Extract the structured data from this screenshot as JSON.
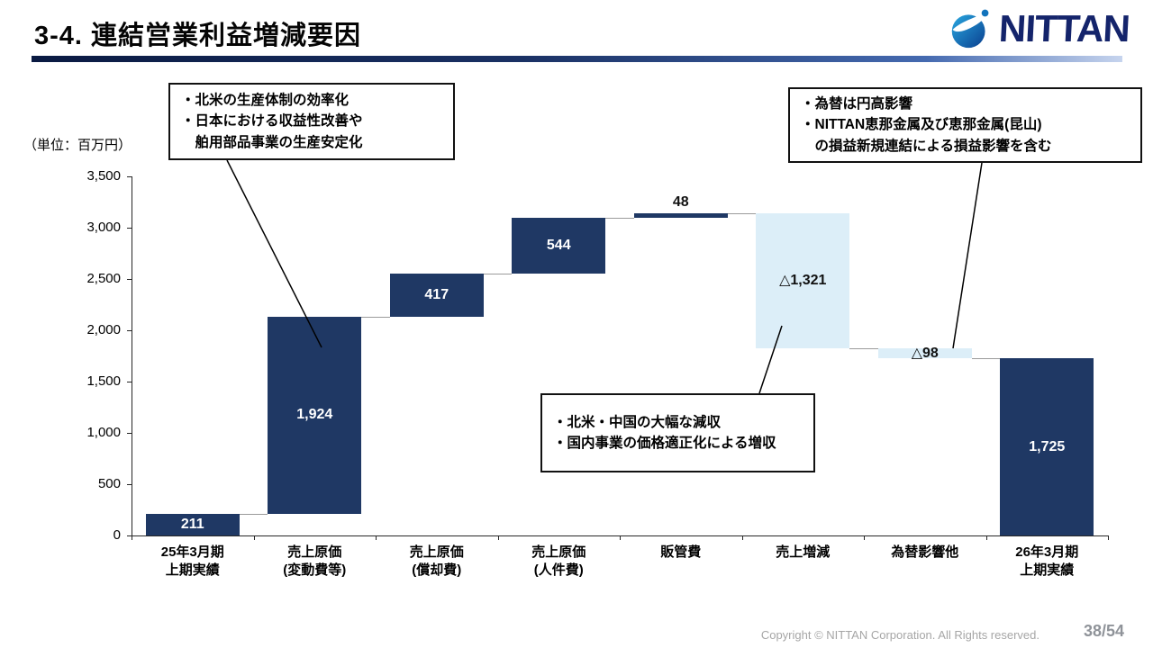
{
  "slide": {
    "title": "3-4. 連結営業利益増減要因",
    "unit_label": "（単位：百万円）",
    "page": "38/54",
    "copyright": "Copyright © NITTAN Corporation. All Rights reserved."
  },
  "logo": {
    "text": "NITTAN"
  },
  "annotations": {
    "box1": {
      "lines": [
        "・北米の生産体制の効率化",
        "・日本における収益性改善や",
        "　舶用部品事業の生産安定化"
      ]
    },
    "box2": {
      "lines": [
        "・為替は円高影響",
        "・NITTAN恵那金属及び恵那金属(昆山)",
        "　の損益新規連結による損益影響を含む"
      ]
    },
    "box3": {
      "lines": [
        "・北米・中国の大幅な減収",
        "・国内事業の価格適正化による増収"
      ]
    }
  },
  "chart_data": {
    "type": "bar",
    "subtype": "waterfall",
    "title": "連結営業利益増減要因",
    "unit": "百万円",
    "categories": [
      [
        "25年3月期",
        "上期実績"
      ],
      [
        "売上原価",
        "(変動費等)"
      ],
      [
        "売上原価",
        "(償却費)"
      ],
      [
        "売上原価",
        "(人件費)"
      ],
      [
        "販管費"
      ],
      [
        "売上増減"
      ],
      [
        "為替影響他"
      ],
      [
        "26年3月期",
        "上期実績"
      ]
    ],
    "values": [
      211,
      1924,
      417,
      544,
      48,
      -1321,
      -98,
      1725
    ],
    "labels": [
      "211",
      "1,924",
      "417",
      "544",
      "48",
      "△1,321",
      "△98",
      "1,725"
    ],
    "absolute_indices": [
      0,
      7
    ],
    "ylim": [
      0,
      3500
    ],
    "yticks": [
      {
        "value": 0,
        "label": "0"
      },
      {
        "value": 500,
        "label": "500"
      },
      {
        "value": 1000,
        "label": "1,000"
      },
      {
        "value": 1500,
        "label": "1,500"
      },
      {
        "value": 2000,
        "label": "2,000"
      },
      {
        "value": 2500,
        "label": "2,500"
      },
      {
        "value": 3000,
        "label": "3,000"
      },
      {
        "value": 3500,
        "label": "3,500"
      }
    ],
    "colors": {
      "positive": "#1F3864",
      "negative": "#DCEEF8",
      "connector": "#9b9b9b",
      "label_on_dark": "#ffffff",
      "label_on_light": "#111111",
      "axis": "#262626"
    }
  }
}
